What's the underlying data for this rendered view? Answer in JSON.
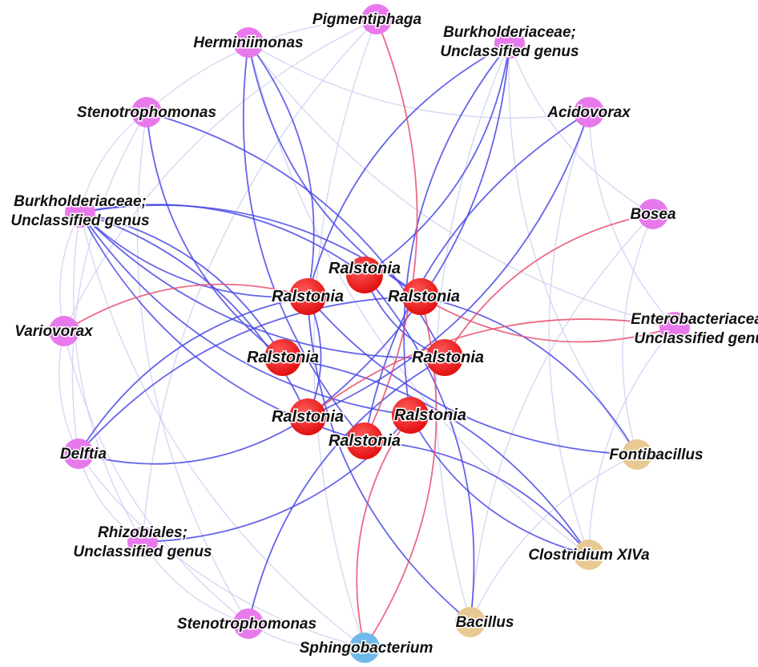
{
  "colors": {
    "positive_edge": "#e8506e",
    "negative_edge": "#4a4ae6",
    "faint_edge": "#c9c9f2",
    "faint_positive_edge": "#f3c0cc",
    "genus_node": "#e879ec",
    "hub_node": "#e21010",
    "firmicutes_node": "#e9c993",
    "bacteroidetes_node": "#6fb8ec"
  },
  "nodes": [
    {
      "id": "herminiimonas",
      "label": "Herminiimonas",
      "group": "genus"
    },
    {
      "id": "pigmentiphaga",
      "label": "Pigmentiphaga",
      "group": "genus"
    },
    {
      "id": "burk-top",
      "label": "Burkholderiaceae;",
      "label2": "Unclassified genus",
      "group": "genus"
    },
    {
      "id": "steno-top",
      "label": "Stenotrophomonas",
      "group": "genus"
    },
    {
      "id": "acidovorax",
      "label": "Acidovorax",
      "group": "genus"
    },
    {
      "id": "burk-left",
      "label": "Burkholderiaceae;",
      "label2": "Unclassified genus",
      "group": "genus"
    },
    {
      "id": "bosea",
      "label": "Bosea",
      "group": "genus"
    },
    {
      "id": "variovorax",
      "label": "Variovorax",
      "group": "genus"
    },
    {
      "id": "entero",
      "label": "Enterobacteriaceae;",
      "label2": "Unclassified genus",
      "group": "genus"
    },
    {
      "id": "delftia",
      "label": "Delftia",
      "group": "genus"
    },
    {
      "id": "fontibacillus",
      "label": "Fontibacillus",
      "group": "firmicutes"
    },
    {
      "id": "rhizobiales",
      "label": "Rhizobiales;",
      "label2": "Unclassified genus",
      "group": "genus"
    },
    {
      "id": "clostridium",
      "label": "Clostridium XIVa",
      "group": "firmicutes"
    },
    {
      "id": "steno-bottom",
      "label": "Stenotrophomonas",
      "group": "genus"
    },
    {
      "id": "bacillus",
      "label": "Bacillus",
      "group": "firmicutes"
    },
    {
      "id": "sphingo",
      "label": "Sphingobacterium",
      "group": "bacteroidetes"
    },
    {
      "id": "ral1",
      "label": "Ralstonia",
      "group": "hub"
    },
    {
      "id": "ral2",
      "label": "Ralstonia",
      "group": "hub"
    },
    {
      "id": "ral3",
      "label": "Ralstonia",
      "group": "hub"
    },
    {
      "id": "ral4",
      "label": "Ralstonia",
      "group": "hub"
    },
    {
      "id": "ral5",
      "label": "Ralstonia",
      "group": "hub"
    },
    {
      "id": "ral6",
      "label": "Ralstonia",
      "group": "hub"
    },
    {
      "id": "ral7",
      "label": "Ralstonia",
      "group": "hub"
    },
    {
      "id": "ral8",
      "label": "Ralstonia",
      "group": "hub"
    }
  ],
  "edges": [
    {
      "from": "herminiimonas",
      "to": "ral3",
      "sign": "negative"
    },
    {
      "from": "herminiimonas",
      "to": "ral2",
      "sign": "negative"
    },
    {
      "from": "herminiimonas",
      "to": "ral8",
      "sign": "negative"
    },
    {
      "from": "steno-top",
      "to": "ral5",
      "sign": "negative"
    },
    {
      "from": "steno-top",
      "to": "ral4",
      "sign": "negative"
    },
    {
      "from": "burk-top",
      "to": "ral1",
      "sign": "negative"
    },
    {
      "from": "burk-top",
      "to": "ral2",
      "sign": "negative"
    },
    {
      "from": "burk-top",
      "to": "ral6",
      "sign": "negative"
    },
    {
      "from": "burk-top",
      "to": "ral7",
      "sign": "negative"
    },
    {
      "from": "acidovorax",
      "to": "ral6",
      "sign": "negative"
    },
    {
      "from": "acidovorax",
      "to": "ral8",
      "sign": "negative"
    },
    {
      "from": "burk-left",
      "to": "ral1",
      "sign": "negative"
    },
    {
      "from": "burk-left",
      "to": "ral2",
      "sign": "negative"
    },
    {
      "from": "burk-left",
      "to": "ral3",
      "sign": "negative"
    },
    {
      "from": "burk-left",
      "to": "ral5",
      "sign": "negative"
    },
    {
      "from": "burk-left",
      "to": "ral6",
      "sign": "negative"
    },
    {
      "from": "burk-left",
      "to": "ral8",
      "sign": "negative"
    },
    {
      "from": "burk-left",
      "to": "ral4",
      "sign": "negative"
    },
    {
      "from": "burk-left",
      "to": "ral7",
      "sign": "negative"
    },
    {
      "from": "delftia",
      "to": "ral3",
      "sign": "negative"
    },
    {
      "from": "delftia",
      "to": "ral6",
      "sign": "negative"
    },
    {
      "from": "delftia",
      "to": "ral2",
      "sign": "negative"
    },
    {
      "from": "rhizobiales",
      "to": "ral7",
      "sign": "negative"
    },
    {
      "from": "steno-bottom",
      "to": "ral5",
      "sign": "negative"
    },
    {
      "from": "fontibacillus",
      "to": "ral3",
      "sign": "negative"
    },
    {
      "from": "fontibacillus",
      "to": "ral2",
      "sign": "negative"
    },
    {
      "from": "clostridium",
      "to": "ral8",
      "sign": "negative"
    },
    {
      "from": "clostridium",
      "to": "ral7",
      "sign": "negative"
    },
    {
      "from": "clostridium",
      "to": "ral4",
      "sign": "negative"
    },
    {
      "from": "bacillus",
      "to": "ral2",
      "sign": "negative"
    },
    {
      "from": "bacillus",
      "to": "ral1",
      "sign": "negative"
    },
    {
      "from": "ral2",
      "to": "ral6",
      "sign": "negative"
    },
    {
      "from": "ral1",
      "to": "ral5",
      "sign": "negative"
    },
    {
      "from": "pigmentiphaga",
      "to": "ral8",
      "sign": "positive"
    },
    {
      "from": "bosea",
      "to": "ral5",
      "sign": "positive"
    },
    {
      "from": "variovorax",
      "to": "ral2",
      "sign": "positive"
    },
    {
      "from": "entero",
      "to": "ral6",
      "sign": "positive"
    },
    {
      "from": "entero",
      "to": "ral3",
      "sign": "positive"
    },
    {
      "from": "sphingo",
      "to": "ral3",
      "sign": "positive"
    },
    {
      "from": "sphingo",
      "to": "ral7",
      "sign": "positive"
    }
  ]
}
